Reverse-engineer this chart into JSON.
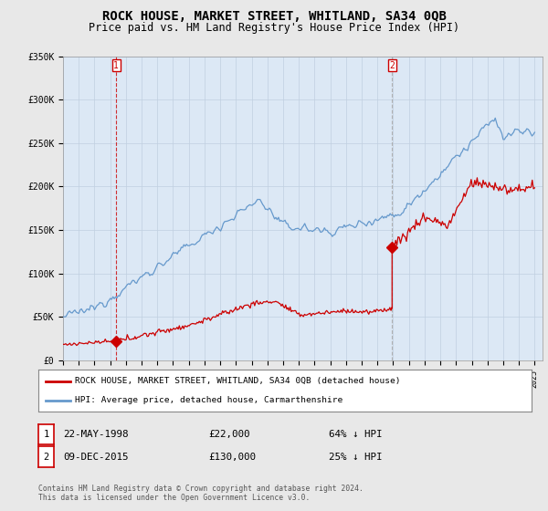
{
  "title": "ROCK HOUSE, MARKET STREET, WHITLAND, SA34 0QB",
  "subtitle": "Price paid vs. HM Land Registry's House Price Index (HPI)",
  "title_fontsize": 10,
  "subtitle_fontsize": 8.5,
  "background_color": "#e8e8e8",
  "plot_bg_color": "#dce8f5",
  "ylim": [
    0,
    350000
  ],
  "yticks": [
    0,
    50000,
    100000,
    150000,
    200000,
    250000,
    300000,
    350000
  ],
  "ytick_labels": [
    "£0",
    "£50K",
    "£100K",
    "£150K",
    "£200K",
    "£250K",
    "£300K",
    "£350K"
  ],
  "xstart_year": 1995,
  "xend_year": 2025,
  "transaction1_date": 1998.38,
  "transaction1_price": 22000,
  "transaction1_label": "1",
  "transaction1_text": "22-MAY-1998",
  "transaction1_amount": "£22,000",
  "transaction1_hpi": "64% ↓ HPI",
  "transaction2_date": 2015.93,
  "transaction2_price": 130000,
  "transaction2_label": "2",
  "transaction2_text": "09-DEC-2015",
  "transaction2_amount": "£130,000",
  "transaction2_hpi": "25% ↓ HPI",
  "legend_label1": "ROCK HOUSE, MARKET STREET, WHITLAND, SA34 0QB (detached house)",
  "legend_label2": "HPI: Average price, detached house, Carmarthenshire",
  "footer": "Contains HM Land Registry data © Crown copyright and database right 2024.\nThis data is licensed under the Open Government Licence v3.0.",
  "red_color": "#cc0000",
  "blue_color": "#6699cc",
  "grid_color": "#c0cfe0"
}
